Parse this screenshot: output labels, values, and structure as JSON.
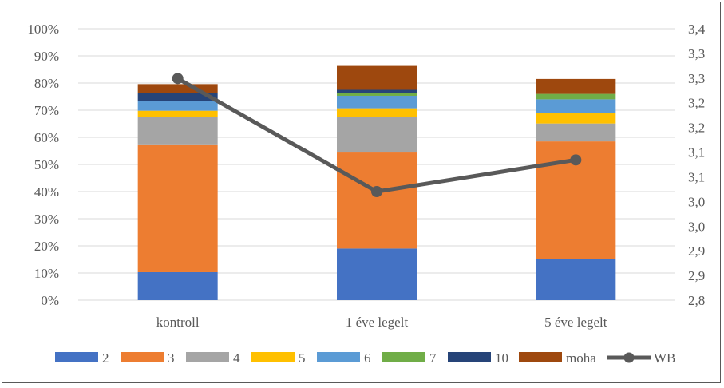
{
  "chart_data": {
    "type": "bar",
    "stacked": true,
    "categories": [
      "kontroll",
      "1 éve legelt",
      "5 éve legelt"
    ],
    "series": [
      {
        "name": "2",
        "color": "#4472C4",
        "values": [
          10.3,
          19.0,
          15.1
        ]
      },
      {
        "name": "3",
        "color": "#ED7D31",
        "values": [
          47.1,
          35.4,
          43.4
        ]
      },
      {
        "name": "4",
        "color": "#A5A5A5",
        "values": [
          10.2,
          13.1,
          6.6
        ]
      },
      {
        "name": "5",
        "color": "#FFC000",
        "values": [
          2.2,
          3.2,
          3.9
        ]
      },
      {
        "name": "6",
        "color": "#5B9BD5",
        "values": [
          3.6,
          4.6,
          5.0
        ]
      },
      {
        "name": "7",
        "color": "#70AD47",
        "values": [
          0.0,
          0.9,
          2.0
        ]
      },
      {
        "name": "10",
        "color": "#264478",
        "values": [
          2.8,
          1.3,
          0.0
        ]
      },
      {
        "name": "moha",
        "color": "#9E480E",
        "values": [
          3.4,
          8.8,
          5.5
        ]
      }
    ],
    "line_series": {
      "name": "WB",
      "color": "#595959",
      "axis": "right",
      "values": [
        3.29,
        3.04,
        3.11
      ]
    },
    "y_left": {
      "range": [
        0,
        100
      ],
      "unit": "%",
      "ticks": [
        "0%",
        "10%",
        "20%",
        "30%",
        "40%",
        "50%",
        "60%",
        "70%",
        "80%",
        "90%",
        "100%"
      ]
    },
    "y_right": {
      "range": [
        2.8,
        3.4
      ],
      "ticks": [
        "2,8",
        "2,9",
        "2,9",
        "3,0",
        "3,0",
        "3,1",
        "3,1",
        "3,2",
        "3,2",
        "3,3",
        "3,3",
        "3,4"
      ]
    },
    "gridlines": true,
    "legend_position": "bottom"
  }
}
